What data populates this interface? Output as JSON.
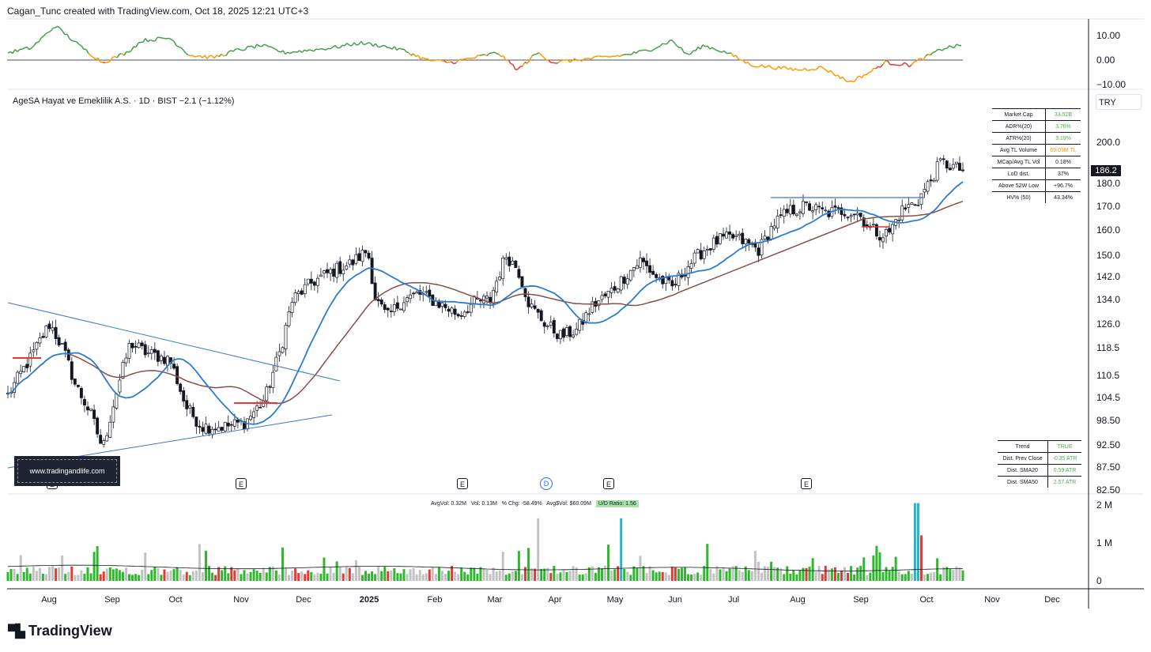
{
  "header": {
    "text": "Cagan_Tunc created with TradingView.com, Oct 18, 2025 12:21 UTC+3"
  },
  "symbol": {
    "line": "AgeSA Hayat ve Emeklilik A.S. · 1D · BIST  −2.1 (−1.12%)"
  },
  "currency": "TRY",
  "last_price": "186.2",
  "branding": {
    "logo_text": "TradingView",
    "watermark": "www.tradingandlife.com"
  },
  "stats_table": [
    {
      "label": "Market Cap",
      "value": "33.52B",
      "color": "#4caf50"
    },
    {
      "label": "ADR%(20)",
      "value": "3.76%",
      "color": "#4caf50"
    },
    {
      "label": "ATR%(20)",
      "value": "3.19%",
      "color": "#4caf50"
    },
    {
      "label": "Avg TL Volume",
      "value": "69.09M TL",
      "color": "#ff9800"
    },
    {
      "label": "MCap/Avg TL Vol",
      "value": "0.18%",
      "color": "#131722"
    },
    {
      "label": "LoD dist.",
      "value": "37%",
      "color": "#131722"
    },
    {
      "label": "Above 52W Low",
      "value": "+96.7%",
      "color": "#131722"
    },
    {
      "label": "HV% (50)",
      "value": "43.34%",
      "color": "#131722"
    }
  ],
  "trend_table": [
    {
      "label": "Trend",
      "value": "TRUE",
      "color": "#4caf50"
    },
    {
      "label": "Dist. Prev Close",
      "value": "-0.35 ATR",
      "color": "#4caf50"
    },
    {
      "label": "Dist. SMA20",
      "value": "0.59 ATR",
      "color": "#4caf50"
    },
    {
      "label": "Dist. SMA50",
      "value": "2.57 ATR",
      "color": "#4caf50"
    }
  ],
  "volume_info": {
    "avg_vol": "AvgVol: 0.32M",
    "vol": "Vol: 0.13M",
    "pct_chg": "% Chg: -58.49%",
    "avg_dollar_vol": "Avg$Vol: $60.09M",
    "ud_ratio": "U/D Ratio: 1.56"
  },
  "events": {
    "earnings": [
      "E",
      "E",
      "E",
      "E",
      "E"
    ],
    "dividend": "D"
  },
  "colors": {
    "up": "#ffffff",
    "down": "#131722",
    "sma_fast": "#2b7bd1",
    "sma_slow": "#8a4b4b",
    "vol_up": "#2eb82e",
    "vol_down": "#e53935",
    "vol_neutral": "#c2c2c2",
    "vol_spike": "#26b5c7",
    "osc_green": "#43a047",
    "osc_orange": "#ff9800",
    "osc_red": "#e53935",
    "trendline": "#3b78c7",
    "level": "#e53935"
  },
  "chart_data": [
    {
      "type": "line",
      "title": "",
      "ylim": [
        -12,
        15
      ],
      "yticks": [
        "10.00",
        "0.00",
        "−10.00"
      ],
      "y_tick_values": [
        10,
        0,
        -10
      ],
      "baseline": 0,
      "series": [
        {
          "x": [
            "Aug",
            "Sep",
            "Oct",
            "Nov",
            "Dec",
            "2025",
            "Feb",
            "Mar",
            "Apr",
            "May",
            "Jun",
            "Jul",
            "Aug",
            "Sep",
            "Oct"
          ],
          "values": [
            5,
            -1,
            4,
            3,
            4,
            6,
            1,
            2,
            -3,
            1,
            6,
            2,
            -3,
            -4,
            6
          ]
        }
      ]
    },
    {
      "type": "candlestick",
      "title": "",
      "yscale": "log",
      "ylim": [
        82.5,
        210
      ],
      "yticks": [
        "200.0",
        "180.0",
        "170.0",
        "160.0",
        "150.0",
        "142.0",
        "134.0",
        "126.0",
        "118.5",
        "110.5",
        "104.5",
        "98.50",
        "92.50",
        "87.50",
        "82.50"
      ],
      "y_tick_values": [
        200,
        180,
        170,
        160,
        150,
        142,
        134,
        126,
        118.5,
        110.5,
        104.5,
        98.5,
        92.5,
        87.5,
        82.5
      ],
      "x_labels": [
        "Aug",
        "Sep",
        "Oct",
        "Nov",
        "Dec",
        "2025",
        "Feb",
        "Mar",
        "Apr",
        "May",
        "Jun",
        "Jul",
        "Aug",
        "Sep",
        "Oct",
        "Nov",
        "Dec"
      ],
      "close_path": [
        [
          "Jul-start",
          108
        ],
        [
          "Aug",
          122
        ],
        [
          "Aug-mid",
          108
        ],
        [
          "Sep",
          92
        ],
        [
          "Sep-mid",
          120
        ],
        [
          "Oct",
          114
        ],
        [
          "Oct-mid",
          103
        ],
        [
          "Nov",
          96
        ],
        [
          "Nov-mid",
          100
        ],
        [
          "Nov-end",
          112
        ],
        [
          "Dec",
          132
        ],
        [
          "Dec-mid",
          142
        ],
        [
          "Dec-end",
          153
        ],
        [
          "2025",
          130
        ],
        [
          "Jan-mid",
          138
        ],
        [
          "Feb",
          133
        ],
        [
          "Feb-mid",
          134
        ],
        [
          "Mar",
          150
        ],
        [
          "Mar-mid",
          140
        ],
        [
          "Apr",
          125
        ],
        [
          "Apr-mid",
          122
        ],
        [
          "May",
          135
        ],
        [
          "May-mid",
          140
        ],
        [
          "Jun",
          145
        ],
        [
          "Jun-mid",
          138
        ],
        [
          "Jul",
          155
        ],
        [
          "Jul-mid",
          158
        ],
        [
          "Aug",
          170
        ],
        [
          "Aug-mid",
          167
        ],
        [
          "Sep",
          162
        ],
        [
          "Sep-mid",
          157
        ],
        [
          "Oct",
          186
        ],
        [
          "Oct-end",
          186.2
        ]
      ],
      "series": [
        {
          "name": "",
          "kind": "sma_fast"
        },
        {
          "name": "",
          "kind": "sma_slow"
        }
      ]
    },
    {
      "type": "bar",
      "title": "",
      "ylim": [
        0,
        2200000
      ],
      "yticks": [
        "2 M",
        "1 M",
        "0"
      ],
      "y_tick_values": [
        2000000,
        1000000,
        0
      ],
      "series": [
        {
          "name": "",
          "kind": "volume"
        }
      ]
    }
  ]
}
